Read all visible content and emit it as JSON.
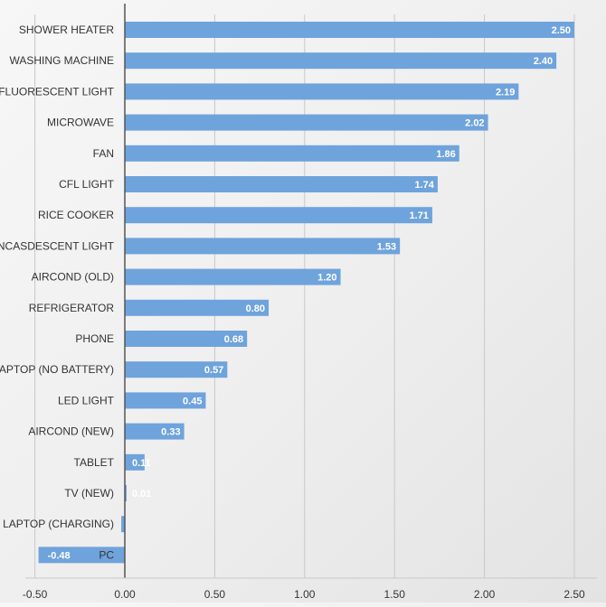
{
  "chart_data": {
    "type": "bar",
    "orientation": "horizontal",
    "categories": [
      "SHOWER HEATER",
      "WASHING MACHINE",
      "FLUORESCENT LIGHT",
      "MICROWAVE",
      "FAN",
      "CFL LIGHT",
      "RICE COOKER",
      "INCASDESCENT LIGHT",
      "AIRCOND (OLD)",
      "REFRIGERATOR",
      "PHONE",
      "LAPTOP (NO BATTERY)",
      "LED LIGHT",
      "AIRCOND (NEW)",
      "TABLET",
      "TV (NEW)",
      "LAPTOP (CHARGING)",
      "PC"
    ],
    "values": [
      2.5,
      2.4,
      2.19,
      2.02,
      1.86,
      1.74,
      1.71,
      1.53,
      1.2,
      0.8,
      0.68,
      0.57,
      0.45,
      0.33,
      0.11,
      0.01,
      -0.02,
      -0.48
    ],
    "data_labels": [
      "2.50",
      "2.40",
      "2.19",
      "2.02",
      "1.86",
      "1.74",
      "1.71",
      "1.53",
      "1.20",
      "0.80",
      "0.68",
      "0.57",
      "0.45",
      "0.33",
      "0.11",
      "0.01",
      "",
      "-0.48"
    ],
    "xticks": [
      "-0.50",
      "0.00",
      "0.50",
      "1.00",
      "1.50",
      "2.00",
      "2.50"
    ],
    "xlim": [
      -0.5,
      2.6
    ],
    "grid": true,
    "title": "",
    "xlabel": "",
    "ylabel": "",
    "colors": {
      "bar": "#6fa3dc",
      "grid": "#c8c8c8",
      "axis": "#555555",
      "label": "#333333",
      "data_label": "#ffffff"
    }
  }
}
